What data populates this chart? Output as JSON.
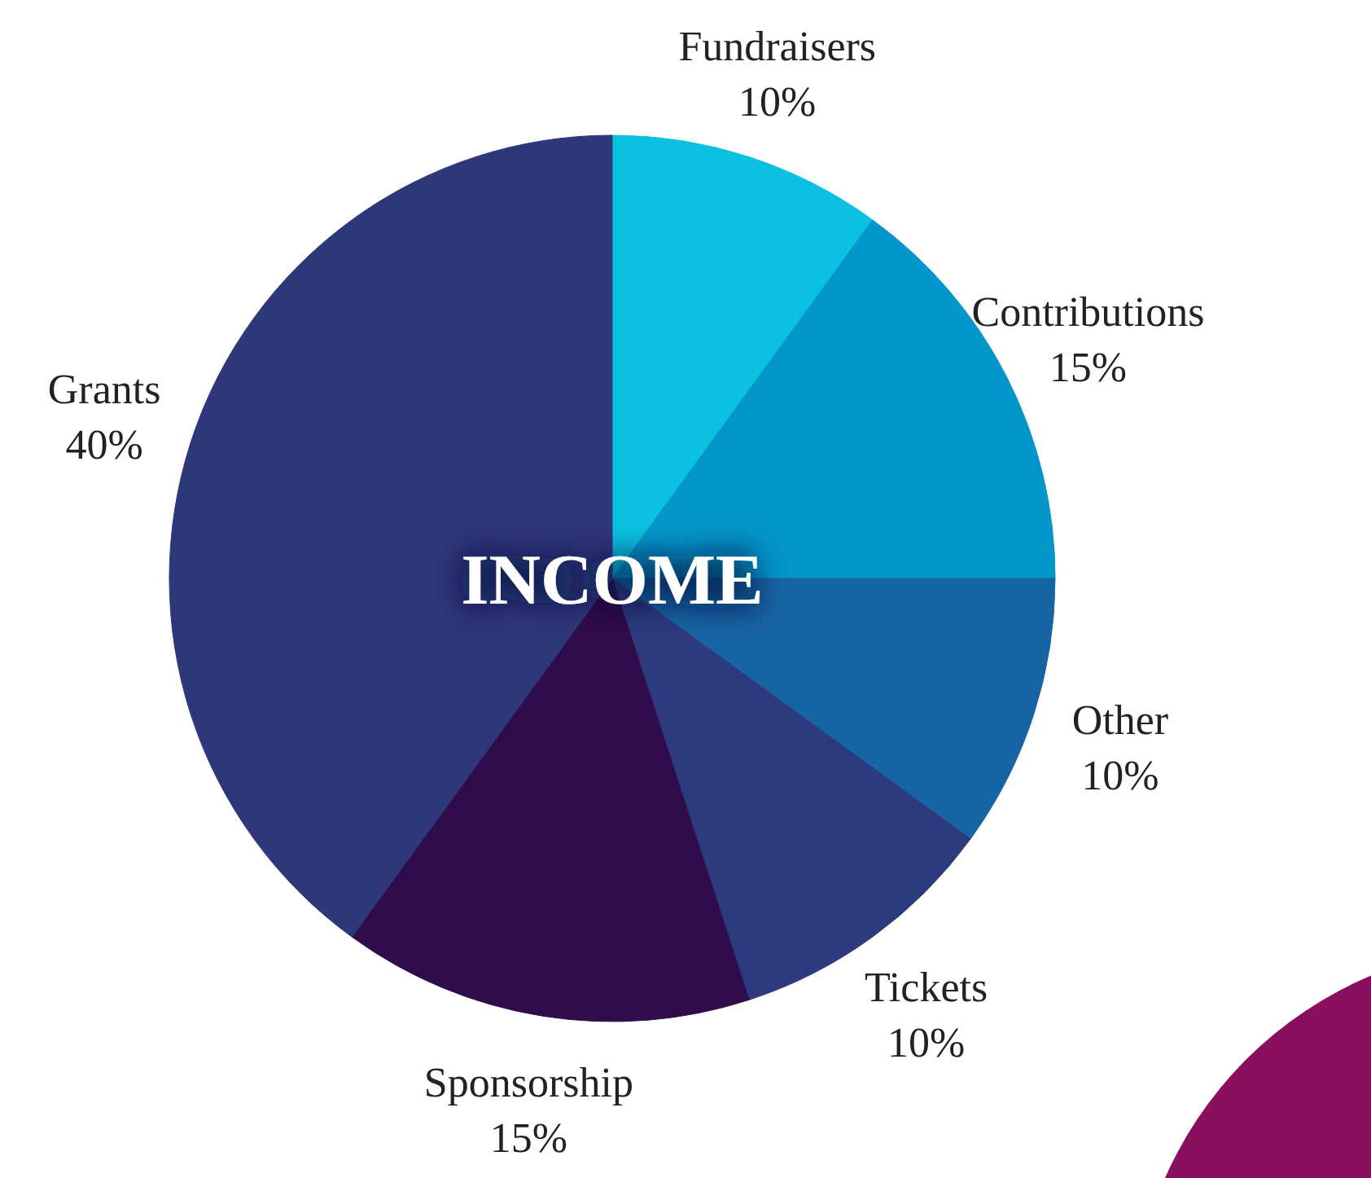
{
  "chart_data": {
    "type": "pie",
    "title": "INCOME",
    "categories": [
      "Fundraisers",
      "Contributions",
      "Other",
      "Tickets",
      "Sponsorship",
      "Grants"
    ],
    "values": [
      10,
      15,
      10,
      10,
      15,
      40
    ],
    "colors": [
      "#0bc1e0",
      "#0396ca",
      "#1764a4",
      "#2d3a7d",
      "#2f0c4a",
      "#2e377a"
    ],
    "value_labels": [
      "10%",
      "15%",
      "10%",
      "10%",
      "15%",
      "40%"
    ]
  }
}
